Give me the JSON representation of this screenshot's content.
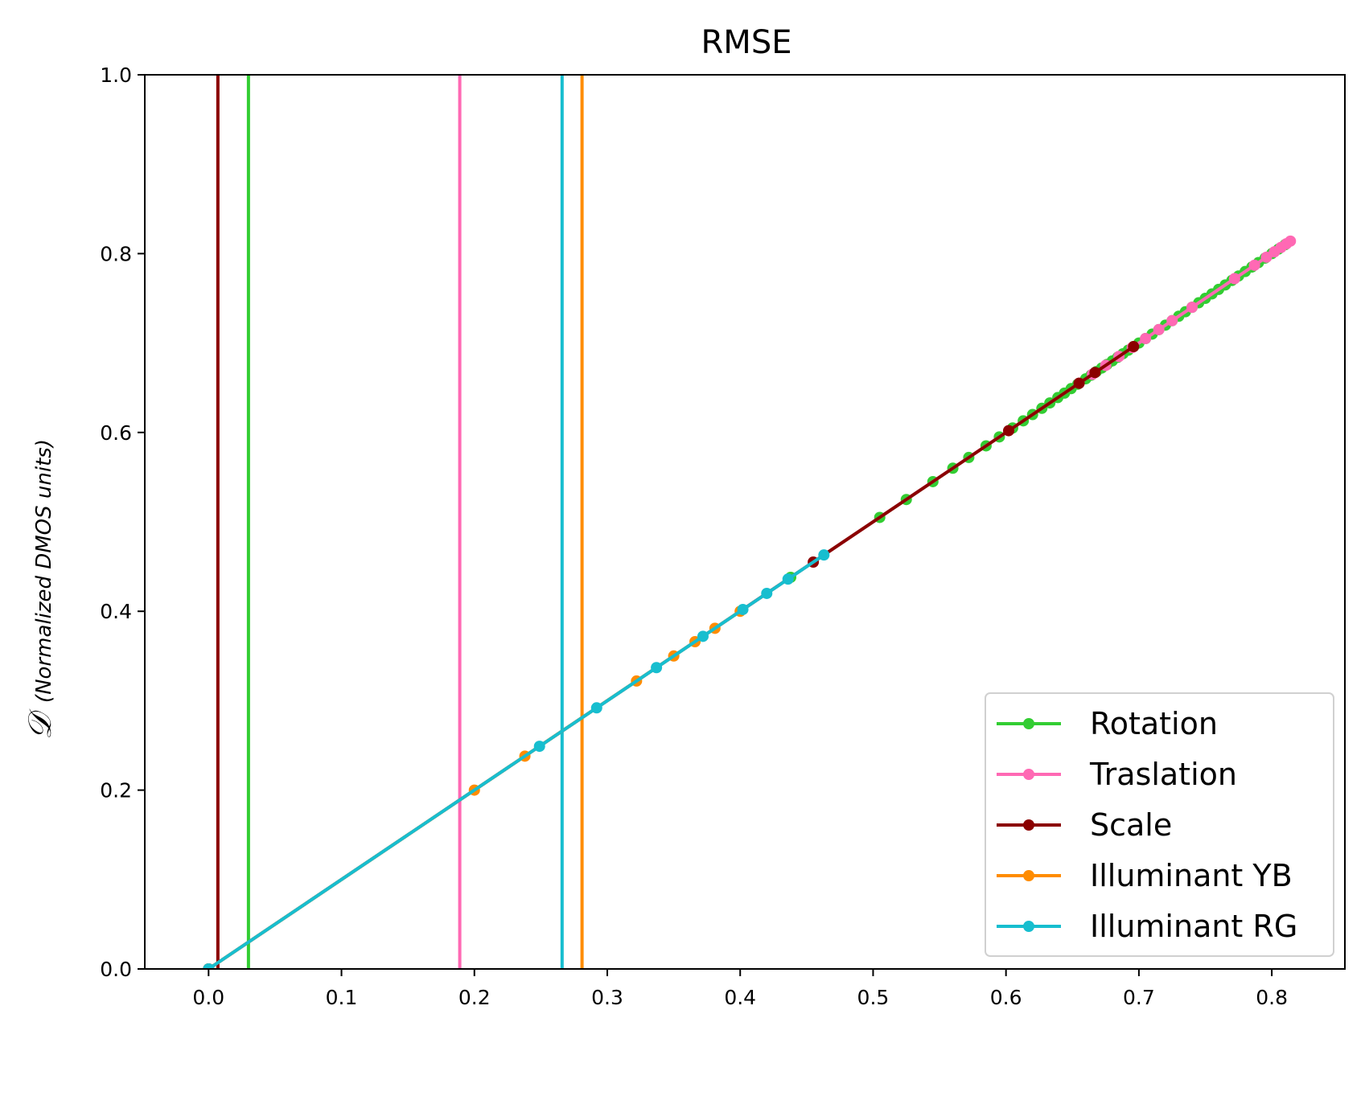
{
  "chart_data": {
    "type": "line",
    "title": "RMSE",
    "xlabel": "",
    "ylabel_symbol": "𝒟",
    "ylabel": "(Normalized DMOS units)",
    "xlim": [
      -0.048,
      0.855
    ],
    "ylim": [
      0.0,
      1.0
    ],
    "x_ticks": [
      0.0,
      0.1,
      0.2,
      0.3,
      0.4,
      0.5,
      0.6,
      0.7,
      0.8
    ],
    "x_tick_labels": [
      "0.0",
      "0.1",
      "0.2",
      "0.3",
      "0.4",
      "0.5",
      "0.6",
      "0.7",
      "0.8"
    ],
    "y_ticks": [
      0.0,
      0.2,
      0.4,
      0.6,
      0.8,
      1.0
    ],
    "y_tick_labels": [
      "0.0",
      "0.2",
      "0.4",
      "0.6",
      "0.8",
      "1.0"
    ],
    "grid": false,
    "legend_position": "bottom-right",
    "series": [
      {
        "name": "Rotation",
        "color": "#32cd32",
        "threshold_x": 0.03,
        "x": [
          0.0,
          0.438,
          0.505,
          0.525,
          0.545,
          0.56,
          0.572,
          0.585,
          0.595,
          0.605,
          0.613,
          0.62,
          0.627,
          0.633,
          0.639,
          0.644,
          0.649,
          0.654,
          0.66,
          0.664,
          0.668,
          0.672,
          0.676,
          0.68,
          0.684,
          0.688,
          0.692,
          0.696,
          0.7,
          0.705,
          0.71,
          0.715,
          0.72,
          0.725,
          0.73,
          0.735,
          0.74,
          0.745,
          0.75,
          0.755,
          0.76,
          0.765,
          0.77,
          0.775,
          0.78,
          0.785,
          0.79,
          0.795,
          0.8,
          0.805,
          0.81
        ],
        "y": [
          0.0,
          0.438,
          0.505,
          0.525,
          0.545,
          0.56,
          0.572,
          0.585,
          0.595,
          0.605,
          0.613,
          0.62,
          0.627,
          0.633,
          0.639,
          0.644,
          0.649,
          0.654,
          0.66,
          0.664,
          0.668,
          0.672,
          0.676,
          0.68,
          0.684,
          0.688,
          0.692,
          0.696,
          0.7,
          0.705,
          0.71,
          0.715,
          0.72,
          0.725,
          0.73,
          0.735,
          0.74,
          0.745,
          0.75,
          0.755,
          0.76,
          0.765,
          0.77,
          0.775,
          0.78,
          0.785,
          0.79,
          0.795,
          0.8,
          0.805,
          0.81
        ]
      },
      {
        "name": "Traslation",
        "color": "#ff69b4",
        "threshold_x": 0.189,
        "x": [
          0.0,
          0.655,
          0.665,
          0.675,
          0.685,
          0.695,
          0.705,
          0.715,
          0.725,
          0.74,
          0.772,
          0.787,
          0.796,
          0.802,
          0.807,
          0.811,
          0.814
        ],
        "y": [
          0.0,
          0.655,
          0.665,
          0.675,
          0.685,
          0.695,
          0.705,
          0.715,
          0.725,
          0.74,
          0.772,
          0.787,
          0.796,
          0.802,
          0.807,
          0.811,
          0.814
        ]
      },
      {
        "name": "Scale",
        "color": "#8b0000",
        "threshold_x": 0.007,
        "x": [
          0.0,
          0.455,
          0.602,
          0.655,
          0.667,
          0.696
        ],
        "y": [
          0.0,
          0.455,
          0.602,
          0.655,
          0.667,
          0.696
        ]
      },
      {
        "name": "Illuminant YB",
        "color": "#ff8c00",
        "threshold_x": 0.281,
        "x": [
          0.0,
          0.2,
          0.238,
          0.322,
          0.35,
          0.366,
          0.381,
          0.4
        ],
        "y": [
          0.0,
          0.2,
          0.238,
          0.322,
          0.35,
          0.366,
          0.381,
          0.4
        ]
      },
      {
        "name": "Illuminant RG",
        "color": "#17becf",
        "threshold_x": 0.266,
        "x": [
          0.0,
          0.249,
          0.292,
          0.337,
          0.372,
          0.402,
          0.42,
          0.436,
          0.463
        ],
        "y": [
          0.0,
          0.249,
          0.292,
          0.337,
          0.372,
          0.402,
          0.42,
          0.436,
          0.463
        ]
      }
    ]
  }
}
